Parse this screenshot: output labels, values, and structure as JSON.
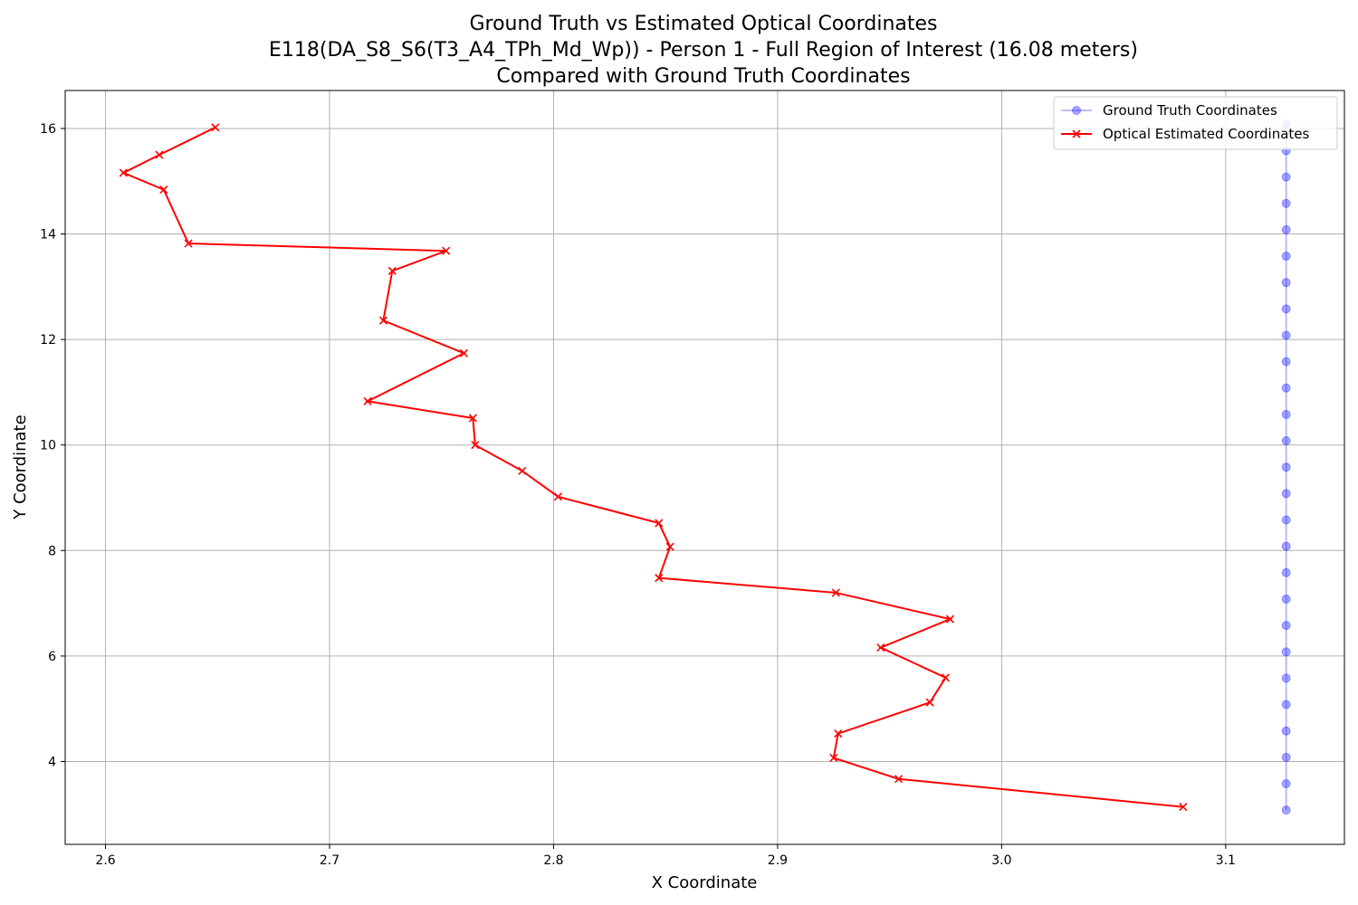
{
  "chart_data": {
    "type": "line",
    "title_lines": [
      "Ground Truth vs Estimated Optical Coordinates",
      "E118(DA_S8_S6(T3_A4_TPh_Md_Wp)) - Person 1 - Full Region of Interest (16.08 meters)",
      "Compared with Ground Truth Coordinates"
    ],
    "xlabel": "X Coordinate",
    "ylabel": "Y Coordinate",
    "xlim": [
      2.582,
      3.153
    ],
    "ylim": [
      2.43,
      16.72
    ],
    "xticks": [
      "2.6",
      "2.7",
      "2.8",
      "2.9",
      "3.0",
      "3.1"
    ],
    "yticks": [
      "4",
      "6",
      "8",
      "10",
      "12",
      "14",
      "16"
    ],
    "grid": true,
    "legend_position": "top-right",
    "series": [
      {
        "name": "Ground Truth Coordinates",
        "color": "#0000ff",
        "marker": "circle",
        "x": [
          3.127,
          3.127,
          3.127,
          3.127,
          3.127,
          3.127,
          3.127,
          3.127,
          3.127,
          3.127,
          3.127,
          3.127,
          3.127,
          3.127,
          3.127,
          3.127,
          3.127,
          3.127,
          3.127,
          3.127,
          3.127,
          3.127,
          3.127,
          3.127,
          3.127,
          3.127,
          3.127
        ],
        "y": [
          3.08,
          3.58,
          4.08,
          4.58,
          5.08,
          5.58,
          6.08,
          6.58,
          7.08,
          7.58,
          8.08,
          8.58,
          9.08,
          9.58,
          10.08,
          10.58,
          11.08,
          11.58,
          12.08,
          12.58,
          13.08,
          13.58,
          14.08,
          14.58,
          15.08,
          15.58,
          16.08
        ]
      },
      {
        "name": "Optical Estimated Coordinates",
        "color": "#ff0000",
        "marker": "x",
        "x": [
          3.081,
          2.954,
          2.925,
          2.927,
          2.968,
          2.975,
          2.946,
          2.977,
          2.926,
          2.847,
          2.852,
          2.847,
          2.802,
          2.786,
          2.765,
          2.764,
          2.717,
          2.76,
          2.724,
          2.728,
          2.752,
          2.637,
          2.626,
          2.608,
          2.624,
          2.649
        ],
        "y": [
          3.14,
          3.67,
          4.07,
          4.53,
          5.12,
          5.59,
          6.16,
          6.7,
          7.2,
          7.48,
          8.07,
          8.52,
          9.02,
          9.51,
          10.0,
          10.51,
          10.83,
          11.74,
          12.36,
          13.3,
          13.68,
          13.82,
          14.84,
          15.16,
          15.5,
          16.02
        ]
      }
    ]
  }
}
